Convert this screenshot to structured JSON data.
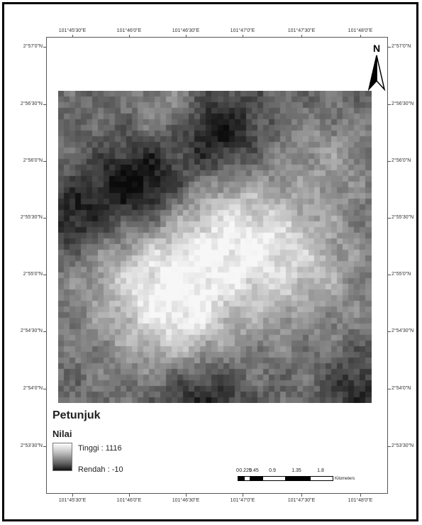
{
  "map": {
    "north_label": "N",
    "top_labels": [
      "101°45'30\"E",
      "101°46'0\"E",
      "101°46'30\"E",
      "101°47'0\"E",
      "101°47'30\"E",
      "101°48'0\"E"
    ],
    "bottom_labels": [
      "101°45'30\"E",
      "101°46'0\"E",
      "101°46'30\"E",
      "101°47'0\"E",
      "101°47'30\"E",
      "101°48'0\"E"
    ],
    "left_labels": [
      "2°57'0\"N",
      "2°56'30\"N",
      "2°56'0\"N",
      "2°55'30\"N",
      "2°55'0\"N",
      "2°54'30\"N",
      "2°54'0\"N",
      "2°53'30\"N"
    ],
    "right_labels": [
      "2°57'0\"N",
      "2°56'30\"N",
      "2°56'0\"N",
      "2°55'30\"N",
      "2°55'0\"N",
      "2°54'30\"N",
      "2°54'0\"N",
      "2°53'30\"N"
    ]
  },
  "legend": {
    "title": "Petunjuk",
    "subtitle": "Nilai",
    "high_label": "Tinggi : 1116",
    "low_label": "Rendah : -10",
    "ramp_colors": [
      "#ffffff",
      "#111111"
    ]
  },
  "scale": {
    "values": [
      "0",
      "0.225",
      "0.45",
      "0.9",
      "1.35",
      "1.8"
    ],
    "unit": "Kilometers"
  }
}
